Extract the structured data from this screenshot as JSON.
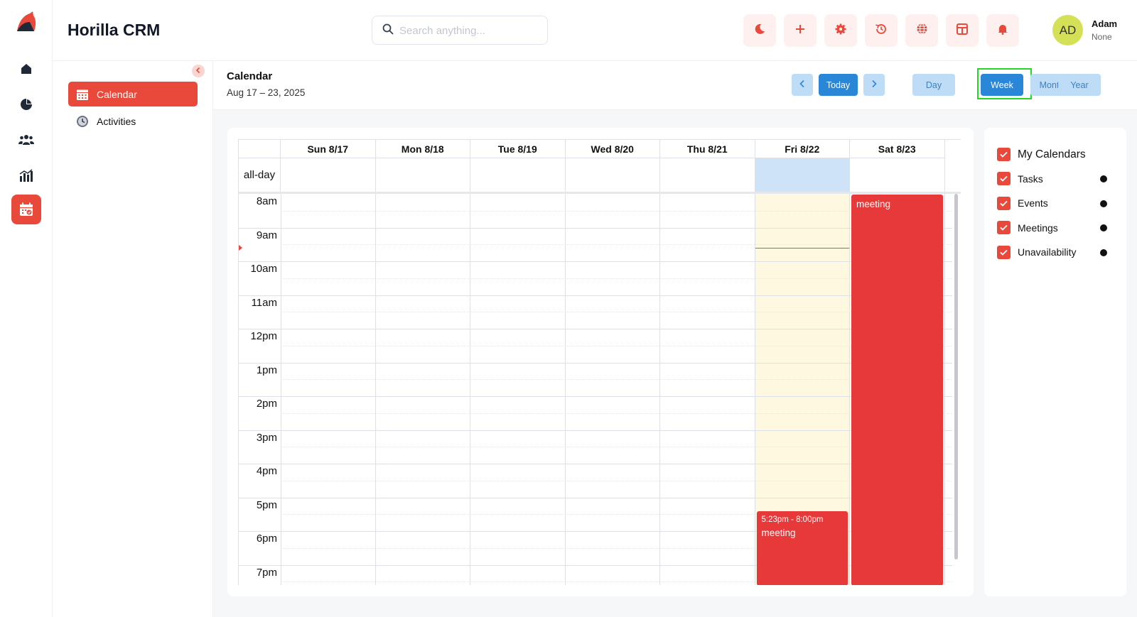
{
  "app": {
    "title": "Horilla CRM"
  },
  "search": {
    "placeholder": "Search anything..."
  },
  "user": {
    "initials": "AD",
    "name": "Adam",
    "role": "None"
  },
  "sidebar": {
    "items": [
      {
        "label": "Calendar"
      },
      {
        "label": "Activities"
      }
    ]
  },
  "calendar": {
    "title": "Calendar",
    "range": "Aug 17 – 23, 2025",
    "today_label": "Today",
    "views": [
      "Day",
      "Week",
      "Month",
      "Year"
    ],
    "selected_view": "Week",
    "allday_label": "all-day",
    "days": [
      "Sun 8/17",
      "Mon 8/18",
      "Tue 8/19",
      "Wed 8/20",
      "Thu 8/21",
      "Fri 8/22",
      "Sat 8/23"
    ],
    "today_index": 5,
    "hours": [
      "8am",
      "9am",
      "10am",
      "11am",
      "12pm",
      "1pm",
      "2pm",
      "3pm",
      "4pm",
      "5pm",
      "6pm",
      "7pm"
    ],
    "events": [
      {
        "day": 5,
        "time": "5:23pm - 8:00pm",
        "title": "meeting"
      },
      {
        "day": 6,
        "title": "meeting"
      }
    ]
  },
  "my_calendars": {
    "title": "My Calendars",
    "items": [
      "Tasks",
      "Events",
      "Meetings",
      "Unavailability"
    ]
  },
  "colors": {
    "accent": "#e8493a",
    "event": "#e8393a",
    "primary_blue": "#2a86d6",
    "today_bg": "#fdf8df"
  }
}
